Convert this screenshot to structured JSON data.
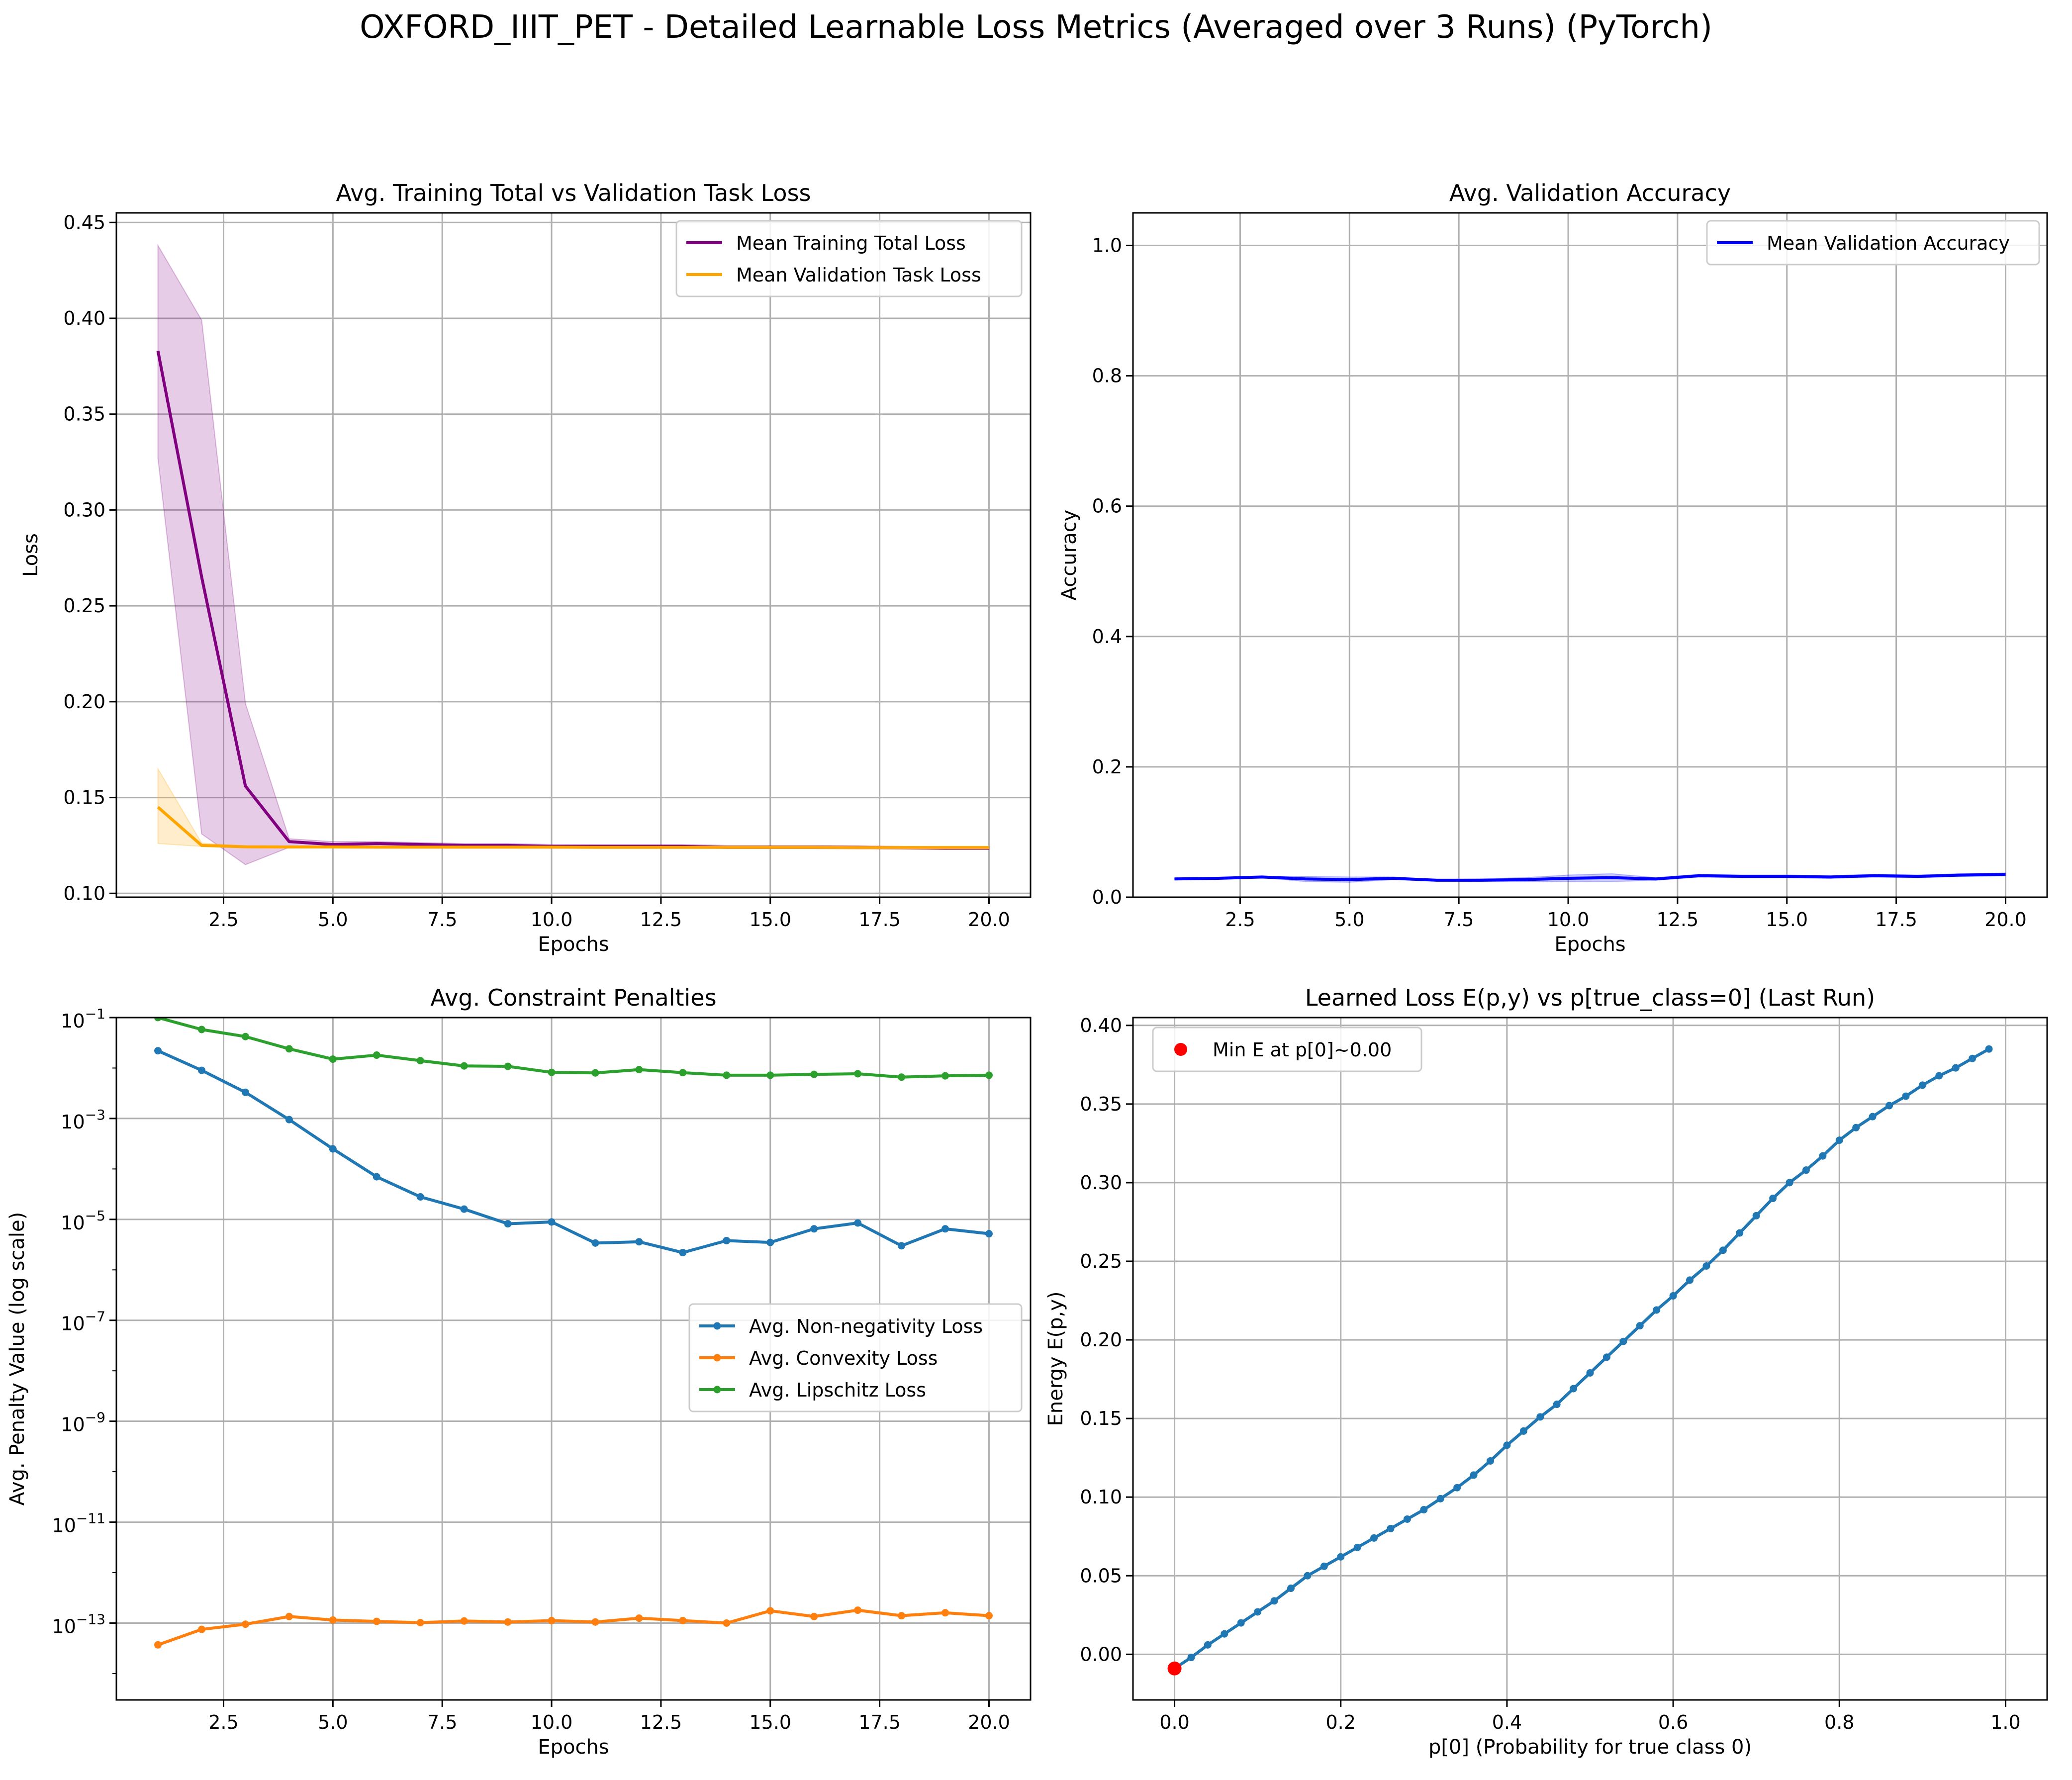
{
  "figure": {
    "title": "OXFORD_IIIT_PET - Detailed Learnable Loss Metrics (Averaged over 3 Runs) (PyTorch)"
  },
  "chart_data": [
    {
      "type": "line",
      "title": "Avg. Training Total vs Validation Task Loss",
      "xlabel": "Epochs",
      "ylabel": "Loss",
      "xlim": [
        0.05,
        20.95
      ],
      "ylim": [
        0.098,
        0.455
      ],
      "xticks": [
        2.5,
        5.0,
        7.5,
        10.0,
        12.5,
        15.0,
        17.5,
        20.0
      ],
      "xtick_labels": [
        "2.5",
        "5.0",
        "7.5",
        "10.0",
        "12.5",
        "15.0",
        "17.5",
        "20.0"
      ],
      "yticks": [
        0.1,
        0.15,
        0.2,
        0.25,
        0.3,
        0.35,
        0.4,
        0.45
      ],
      "ytick_labels": [
        "0.10",
        "0.15",
        "0.20",
        "0.25",
        "0.30",
        "0.35",
        "0.40",
        "0.45"
      ],
      "grid": true,
      "legend": "upper right",
      "x": [
        1,
        2,
        3,
        4,
        5,
        6,
        7,
        8,
        9,
        10,
        11,
        12,
        13,
        14,
        15,
        16,
        17,
        18,
        19,
        20
      ],
      "series": [
        {
          "name": "Mean Training Total Loss",
          "color": "#800080",
          "values": [
            0.383,
            0.265,
            0.156,
            0.127,
            0.1255,
            0.126,
            0.1255,
            0.125,
            0.125,
            0.1245,
            0.1245,
            0.1245,
            0.1245,
            0.124,
            0.124,
            0.124,
            0.124,
            0.1238,
            0.1236,
            0.1236
          ],
          "band_lower": [
            0.327,
            0.131,
            0.115,
            0.124,
            0.124,
            0.124,
            0.124,
            0.124,
            0.1238,
            0.1236,
            0.1236,
            0.1236,
            0.1236,
            0.1234,
            0.1234,
            0.1234,
            0.1232,
            0.1232,
            0.123,
            0.123
          ],
          "band_upper": [
            0.438,
            0.399,
            0.199,
            0.1285,
            0.127,
            0.127,
            0.1265,
            0.126,
            0.126,
            0.1255,
            0.1255,
            0.1255,
            0.1255,
            0.125,
            0.125,
            0.125,
            0.1248,
            0.1245,
            0.1243,
            0.1243
          ]
        },
        {
          "name": "Mean Validation Task Loss",
          "color": "#ffa500",
          "values": [
            0.145,
            0.125,
            0.1243,
            0.1242,
            0.1242,
            0.1241,
            0.1241,
            0.1241,
            0.1241,
            0.1241,
            0.124,
            0.124,
            0.124,
            0.124,
            0.124,
            0.124,
            0.1239,
            0.1239,
            0.1239,
            0.1239
          ],
          "band_lower": [
            0.126,
            0.1245,
            0.1238,
            0.1238,
            0.1238,
            0.1237,
            0.1237,
            0.1237,
            0.1237,
            0.1237,
            0.1236,
            0.1236,
            0.1236,
            0.1236,
            0.1236,
            0.1236,
            0.1235,
            0.1235,
            0.1235,
            0.1235
          ],
          "band_upper": [
            0.165,
            0.1262,
            0.1248,
            0.1246,
            0.1246,
            0.1245,
            0.1245,
            0.1245,
            0.1245,
            0.1245,
            0.1244,
            0.1244,
            0.1244,
            0.1244,
            0.1244,
            0.1244,
            0.1243,
            0.1243,
            0.1243,
            0.1243
          ]
        }
      ]
    },
    {
      "type": "line",
      "title": "Avg. Validation Accuracy",
      "xlabel": "Epochs",
      "ylabel": "Accuracy",
      "xlim": [
        0.05,
        20.95
      ],
      "ylim": [
        0,
        1.05
      ],
      "xticks": [
        2.5,
        5.0,
        7.5,
        10.0,
        12.5,
        15.0,
        17.5,
        20.0
      ],
      "xtick_labels": [
        "2.5",
        "5.0",
        "7.5",
        "10.0",
        "12.5",
        "15.0",
        "17.5",
        "20.0"
      ],
      "yticks": [
        0.0,
        0.2,
        0.4,
        0.6,
        0.8,
        1.0
      ],
      "ytick_labels": [
        "0.0",
        "0.2",
        "0.4",
        "0.6",
        "0.8",
        "1.0"
      ],
      "grid": true,
      "legend": "upper right",
      "x": [
        1,
        2,
        3,
        4,
        5,
        6,
        7,
        8,
        9,
        10,
        11,
        12,
        13,
        14,
        15,
        16,
        17,
        18,
        19,
        20
      ],
      "series": [
        {
          "name": "Mean Validation Accuracy",
          "color": "#0000ff",
          "values": [
            0.028,
            0.029,
            0.031,
            0.028,
            0.027,
            0.029,
            0.026,
            0.026,
            0.027,
            0.029,
            0.03,
            0.028,
            0.033,
            0.032,
            0.032,
            0.031,
            0.033,
            0.032,
            0.034,
            0.035
          ],
          "band_lower": [
            0.027,
            0.028,
            0.03,
            0.024,
            0.023,
            0.027,
            0.025,
            0.024,
            0.024,
            0.024,
            0.024,
            0.026,
            0.031,
            0.03,
            0.03,
            0.029,
            0.031,
            0.03,
            0.032,
            0.033
          ],
          "band_upper": [
            0.029,
            0.03,
            0.032,
            0.032,
            0.031,
            0.031,
            0.027,
            0.028,
            0.03,
            0.034,
            0.036,
            0.03,
            0.035,
            0.034,
            0.034,
            0.033,
            0.035,
            0.034,
            0.036,
            0.037
          ]
        }
      ]
    },
    {
      "type": "line",
      "title": "Avg. Constraint Penalties",
      "xlabel": "Epochs",
      "ylabel": "Avg. Penalty Value (log scale)",
      "yscale": "log",
      "xlim": [
        0.05,
        20.95
      ],
      "ylim": [
        3e-15,
        0.1
      ],
      "xticks": [
        2.5,
        5.0,
        7.5,
        10.0,
        12.5,
        15.0,
        17.5,
        20.0
      ],
      "xtick_labels": [
        "2.5",
        "5.0",
        "7.5",
        "10.0",
        "12.5",
        "15.0",
        "17.5",
        "20.0"
      ],
      "yticks": [
        1e-13,
        1e-11,
        1e-09,
        1e-07,
        1e-05,
        0.001,
        0.1
      ],
      "ytick_bases": [
        "10",
        "10",
        "10",
        "10",
        "10",
        "10",
        "10"
      ],
      "ytick_exponents": [
        "−13",
        "−11",
        "−9",
        "−7",
        "−5",
        "−3",
        "−1"
      ],
      "grid": true,
      "legend": "center right",
      "x": [
        1,
        2,
        3,
        4,
        5,
        6,
        7,
        8,
        9,
        10,
        11,
        12,
        13,
        14,
        15,
        16,
        17,
        18,
        19,
        20
      ],
      "series": [
        {
          "name": "Avg. Non-negativity Loss",
          "color": "#1f77b4",
          "values": [
            0.022,
            0.009,
            0.0033,
            0.00095,
            0.00025,
            7e-05,
            2.8e-05,
            1.6e-05,
            8.2e-06,
            8.9e-06,
            3.4e-06,
            3.6e-06,
            2.2e-06,
            3.8e-06,
            3.5e-06,
            6.5e-06,
            8.5e-06,
            3e-06,
            6.5e-06,
            5.2e-06
          ]
        },
        {
          "name": "Avg. Convexity Loss",
          "color": "#ff7f0e",
          "values": [
            3.7e-14,
            7.5e-14,
            9.5e-14,
            1.35e-13,
            1.15e-13,
            1.08e-13,
            1.02e-13,
            1.1e-13,
            1.05e-13,
            1.12e-13,
            1.05e-13,
            1.25e-13,
            1.12e-13,
            1e-13,
            1.75e-13,
            1.35e-13,
            1.8e-13,
            1.4e-13,
            1.6e-13,
            1.4e-13
          ]
        },
        {
          "name": "Avg. Lipschitz Loss",
          "color": "#2ca02c",
          "values": [
            0.1,
            0.058,
            0.042,
            0.024,
            0.015,
            0.018,
            0.014,
            0.011,
            0.0108,
            0.0082,
            0.008,
            0.0093,
            0.0081,
            0.0072,
            0.0072,
            0.0075,
            0.0077,
            0.0066,
            0.007,
            0.0072
          ]
        }
      ]
    },
    {
      "type": "line",
      "title": "Learned Loss E(p,y) vs p[true_class=0] (Last Run)",
      "xlabel": "p[0] (Probability for true class 0)",
      "ylabel": "Energy E(p,y)",
      "xlim": [
        -0.05,
        1.05
      ],
      "ylim": [
        -0.029,
        0.405
      ],
      "xticks": [
        0.0,
        0.2,
        0.4,
        0.6,
        0.8,
        1.0
      ],
      "xtick_labels": [
        "0.0",
        "0.2",
        "0.4",
        "0.6",
        "0.8",
        "1.0"
      ],
      "yticks": [
        0.0,
        0.05,
        0.1,
        0.15,
        0.2,
        0.25,
        0.3,
        0.35,
        0.4
      ],
      "ytick_labels": [
        "0.00",
        "0.05",
        "0.10",
        "0.15",
        "0.20",
        "0.25",
        "0.30",
        "0.35",
        "0.40"
      ],
      "grid": true,
      "legend": "upper left",
      "series": [
        {
          "name": "",
          "color": "#1f77b4",
          "x_start": 0.0,
          "x_step": 0.02,
          "values": [
            -0.009,
            -0.002,
            0.006,
            0.013,
            0.02,
            0.027,
            0.034,
            0.042,
            0.05,
            0.056,
            0.062,
            0.068,
            0.074,
            0.08,
            0.086,
            0.092,
            0.099,
            0.106,
            0.114,
            0.123,
            0.133,
            0.142,
            0.151,
            0.159,
            0.169,
            0.179,
            0.189,
            0.199,
            0.209,
            0.219,
            0.228,
            0.238,
            0.247,
            0.257,
            0.268,
            0.279,
            0.29,
            0.3,
            0.308,
            0.317,
            0.327,
            0.335,
            0.342,
            0.349,
            0.355,
            0.362,
            0.368,
            0.373,
            0.379,
            0.385
          ]
        }
      ],
      "marker": {
        "name": "Min E at p[0]~0.00",
        "x": 0.0,
        "y": -0.009,
        "color": "#ff0000"
      }
    }
  ]
}
